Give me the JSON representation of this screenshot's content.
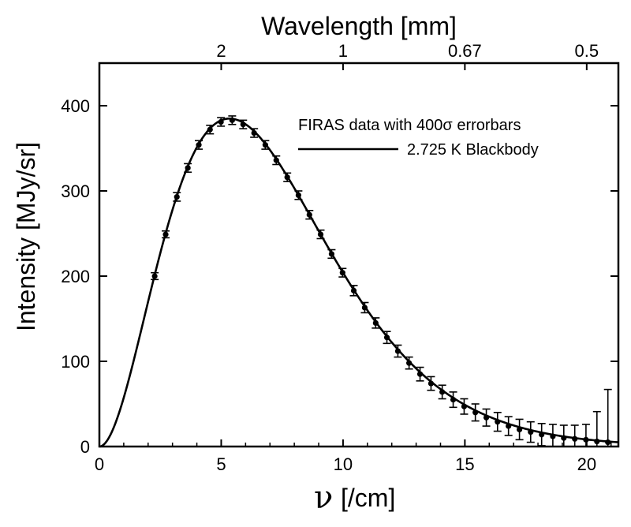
{
  "chart_data": {
    "type": "scatter",
    "title": "",
    "xlabel_symbol": "ν",
    "xlabel_unit": "[/cm]",
    "ylabel": "Intensity [MJy/sr]",
    "top_axis_label": "Wavelength [mm]",
    "xlim": [
      0,
      21.3
    ],
    "ylim": [
      0,
      450
    ],
    "x_ticks": [
      0,
      5,
      10,
      15,
      20
    ],
    "y_ticks": [
      0,
      100,
      200,
      300,
      400
    ],
    "top_ticks": [
      {
        "label": "2",
        "x": 5
      },
      {
        "label": "1",
        "x": 10
      },
      {
        "label": "0.67",
        "x": 15
      },
      {
        "label": "0.5",
        "x": 20
      }
    ],
    "series": [
      {
        "name": "FIRAS data with 400σ errorbars",
        "kind": "points_with_errorbars",
        "x": [
          2.27,
          2.72,
          3.18,
          3.63,
          4.08,
          4.54,
          4.99,
          5.45,
          5.9,
          6.35,
          6.81,
          7.26,
          7.71,
          8.17,
          8.62,
          9.08,
          9.53,
          9.98,
          10.44,
          10.89,
          11.34,
          11.8,
          12.25,
          12.71,
          13.16,
          13.61,
          14.07,
          14.52,
          14.97,
          15.43,
          15.88,
          16.34,
          16.79,
          17.24,
          17.7,
          18.15,
          18.61,
          19.06,
          19.51,
          19.97,
          20.42,
          20.87
        ],
        "y": [
          200,
          249,
          293,
          327,
          354,
          372,
          381,
          383,
          378,
          368,
          354,
          336,
          316,
          295,
          272,
          249,
          226,
          204,
          183,
          163,
          145,
          128,
          112,
          98,
          85,
          74,
          64,
          55,
          47,
          40,
          34,
          29,
          24,
          20,
          17,
          14,
          12,
          10,
          9,
          8,
          6,
          5
        ],
        "err": [
          4,
          4,
          5,
          5,
          5,
          5,
          5,
          5,
          5,
          5,
          5,
          5,
          5,
          5,
          5,
          5,
          5,
          5,
          6,
          6,
          6,
          7,
          7,
          7,
          8,
          8,
          8,
          9,
          9,
          10,
          10,
          11,
          11,
          12,
          12,
          13,
          14,
          15,
          16,
          18,
          35,
          62
        ]
      },
      {
        "name": "2.725 K Blackbody",
        "kind": "line",
        "temperature_K": 2.725
      }
    ],
    "legend": {
      "position": "top-right",
      "entries": [
        "FIRAS data with 400σ errorbars",
        "2.725 K Blackbody"
      ]
    },
    "grid": false
  }
}
